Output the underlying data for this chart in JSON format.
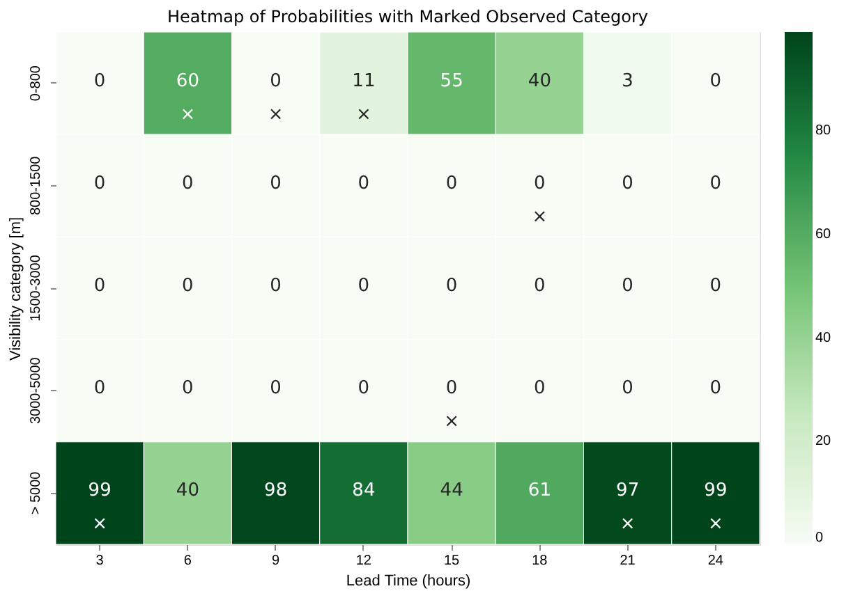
{
  "chart_data": {
    "type": "heatmap",
    "title": "Heatmap of Probabilities with Marked Observed Category",
    "xlabel": "Lead Time (hours)",
    "ylabel": "Visibility category [m]",
    "categories": [
      "3",
      "6",
      "9",
      "12",
      "15",
      "18",
      "21",
      "24"
    ],
    "y_categories": [
      "0-800",
      "800-1500",
      "1500-3000",
      "3000-5000",
      "> 5000"
    ],
    "cells": [
      [
        0,
        60,
        0,
        11,
        55,
        40,
        3,
        0
      ],
      [
        0,
        0,
        0,
        0,
        0,
        0,
        0,
        0
      ],
      [
        0,
        0,
        0,
        0,
        0,
        0,
        0,
        0
      ],
      [
        0,
        0,
        0,
        0,
        0,
        0,
        0,
        0
      ],
      [
        99,
        40,
        98,
        84,
        44,
        61,
        97,
        99
      ]
    ],
    "clim": [
      0,
      99
    ],
    "cticks": [
      0,
      20,
      40,
      60,
      80
    ],
    "data_labels": true,
    "cell_labels": [
      [
        "0",
        "60\n×",
        "0\n×",
        "11\n×",
        "55",
        "40",
        "3",
        "0"
      ],
      [
        "0",
        "0",
        "0",
        "0",
        "0",
        "0\n×",
        "0",
        "0"
      ],
      [
        "0",
        "0",
        "0",
        "0",
        "0",
        "0",
        "0",
        "0"
      ],
      [
        "0",
        "0",
        "0",
        "0",
        "0\n×",
        "0",
        "0",
        "0"
      ],
      [
        "99\n×",
        "40",
        "98",
        "84",
        "44",
        "61",
        "97\n×",
        "99\n×"
      ]
    ]
  }
}
